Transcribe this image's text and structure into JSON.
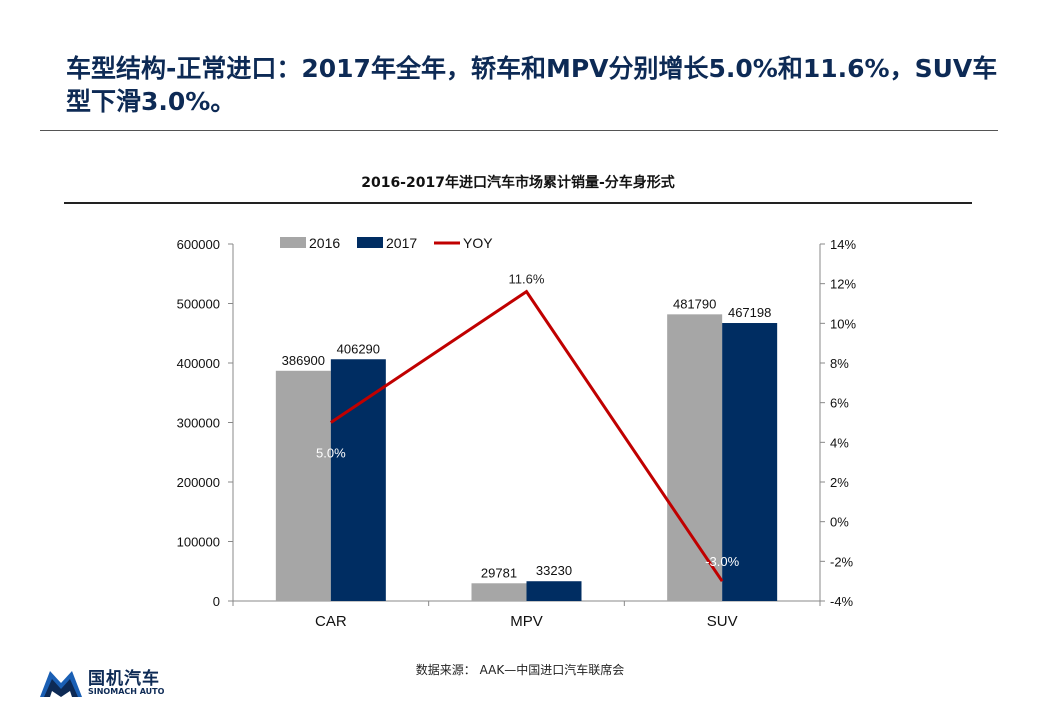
{
  "headline": "车型结构-正常进口：2017年全年，轿车和MPV分别增长5.0%和11.6%，SUV车型下滑3.0%。",
  "source": "数据来源： AAK—中国进口汽车联席会",
  "logo": {
    "cn": "国机汽车",
    "en": "SINOMACH AUTO"
  },
  "chart_data": {
    "type": "bar",
    "title": "2016-2017年进口汽车市场累计销量-分车身形式",
    "categories": [
      "CAR",
      "MPV",
      "SUV"
    ],
    "series": [
      {
        "name": "2016",
        "type": "bar",
        "axis": "left",
        "color": "#a6a6a6",
        "values": [
          386900,
          29781,
          481790
        ],
        "labels": [
          "386900",
          "29781",
          "481790"
        ]
      },
      {
        "name": "2017",
        "type": "bar",
        "axis": "left",
        "color": "#002d62",
        "values": [
          406290,
          33230,
          467198
        ],
        "labels": [
          "406290",
          "33230",
          "467198"
        ]
      },
      {
        "name": "YOY",
        "type": "line",
        "axis": "right",
        "color": "#c00000",
        "values": [
          5.0,
          11.6,
          -3.0
        ],
        "labels": [
          "5.0%",
          "11.6%",
          "-3.0%"
        ]
      }
    ],
    "ylim": [
      0,
      600000
    ],
    "yticks": [
      "0",
      "100000",
      "200000",
      "300000",
      "400000",
      "500000",
      "600000"
    ],
    "y2lim": [
      -4,
      14
    ],
    "y2ticks": [
      "-4%",
      "-2%",
      "0%",
      "2%",
      "4%",
      "6%",
      "8%",
      "10%",
      "12%",
      "14%"
    ],
    "grid": false,
    "legend": "top"
  }
}
